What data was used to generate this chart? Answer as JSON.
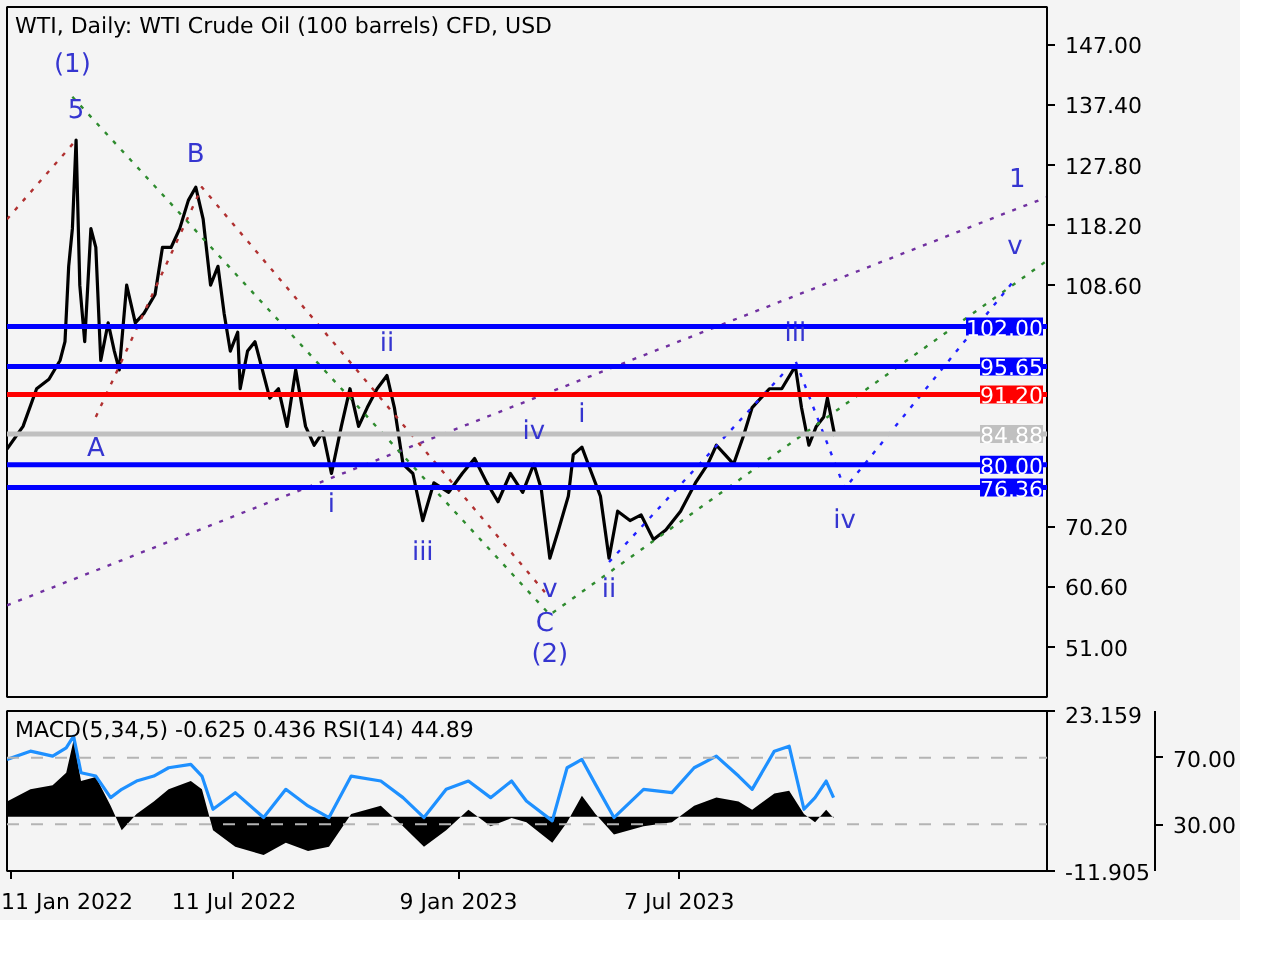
{
  "chart_data": [
    {
      "type": "line",
      "title": "WTI, Daily:  WTI Crude Oil (100 barrels) CFD, USD",
      "xlim": [
        "2022-01-08",
        "2024-04-30"
      ],
      "ylim": [
        43.0,
        152.9
      ],
      "yticks": [
        {
          "value": 147,
          "label": "147.00"
        },
        {
          "value": 137.4,
          "label": "137.40"
        },
        {
          "value": 127.8,
          "label": "127.80"
        },
        {
          "value": 118.2,
          "label": "118.20"
        },
        {
          "value": 108.6,
          "label": "108.60"
        },
        {
          "value": 70.2,
          "label": "70.20"
        },
        {
          "value": 60.6,
          "label": "60.60"
        },
        {
          "value": 51,
          "label": "51.00"
        }
      ],
      "tick_labels": "y",
      "grid": false,
      "series": [
        {
          "color": "#000000",
          "line_style": "solid",
          "x": [
            "2022-01-08",
            "2022-01-21",
            "2022-02-01",
            "2022-02-11",
            "2022-02-20",
            "2022-02-24",
            "2022-02-27",
            "2022-03-02",
            "2022-03-05",
            "2022-03-08",
            "2022-03-12",
            "2022-03-17",
            "2022-03-21",
            "2022-03-25",
            "2022-03-31",
            "2022-04-05",
            "2022-04-09",
            "2022-04-15",
            "2022-04-22",
            "2022-04-29",
            "2022-05-08",
            "2022-05-14",
            "2022-05-21",
            "2022-05-28",
            "2022-06-04",
            "2022-06-10",
            "2022-06-16",
            "2022-06-22",
            "2022-06-28",
            "2022-07-03",
            "2022-07-08",
            "2022-07-14",
            "2022-07-16",
            "2022-07-22",
            "2022-07-28",
            "2022-08-03",
            "2022-08-09",
            "2022-08-16",
            "2022-08-23",
            "2022-08-30",
            "2022-09-07",
            "2022-09-14",
            "2022-09-21",
            "2022-09-28",
            "2022-10-06",
            "2022-10-13",
            "2022-10-20",
            "2022-10-27",
            "2022-11-04",
            "2022-11-12",
            "2022-11-18",
            "2022-11-25",
            "2022-12-03",
            "2022-12-11",
            "2022-12-20",
            "2023-01-01",
            "2023-01-12",
            "2023-01-22",
            "2023-02-01",
            "2023-02-10",
            "2023-02-20",
            "2023-03-02",
            "2023-03-11",
            "2023-03-17",
            "2023-03-24",
            "2023-03-31",
            "2023-04-08",
            "2023-04-12",
            "2023-04-19",
            "2023-04-27",
            "2023-05-04",
            "2023-05-11",
            "2023-05-18",
            "2023-05-28",
            "2023-06-06",
            "2023-06-16",
            "2023-06-26",
            "2023-07-08",
            "2023-07-20",
            "2023-07-30",
            "2023-08-06",
            "2023-08-13",
            "2023-08-20",
            "2023-08-28",
            "2023-09-04",
            "2023-09-11",
            "2023-09-18",
            "2023-09-28",
            "2023-10-09",
            "2023-10-14",
            "2023-10-20",
            "2023-10-26",
            "2023-11-01",
            "2023-11-04",
            "2023-11-10"
          ],
          "values": [
            82.5,
            86.1,
            92.1,
            93.6,
            96.6,
            99.6,
            111.6,
            117.6,
            131.7,
            108.6,
            99.6,
            117.6,
            114.6,
            96.6,
            102.6,
            98.1,
            95.1,
            108.6,
            102.6,
            104.1,
            107.1,
            114.6,
            114.6,
            117.6,
            122.1,
            124.2,
            119.1,
            108.6,
            111.6,
            104.1,
            98.1,
            101.1,
            92.1,
            98.1,
            99.6,
            95.1,
            90.6,
            92.1,
            86.1,
            95.1,
            86.1,
            83.1,
            85.2,
            78.6,
            86.1,
            92.1,
            86.1,
            89.1,
            92.1,
            94.2,
            89.1,
            80.1,
            78.6,
            71.1,
            77.1,
            75.6,
            78.6,
            81.0,
            77.1,
            74.1,
            78.6,
            75.6,
            80.1,
            76.2,
            65.1,
            69.6,
            75.0,
            81.6,
            82.8,
            78.6,
            75.0,
            65.1,
            72.6,
            71.1,
            72.0,
            68.1,
            69.6,
            72.6,
            77.1,
            80.1,
            83.1,
            81.6,
            80.1,
            84.6,
            89.1,
            90.6,
            92.1,
            92.1,
            95.7,
            89.1,
            83.1,
            86.1,
            87.6,
            90.6,
            84.6
          ]
        },
        {
          "color": "#7030a0",
          "line_style": "dotted",
          "x": [
            "2022-01-08",
            "2024-04-06",
            "2024-04-30"
          ],
          "values": [
            57.6,
            120.8,
            122.6
          ]
        },
        {
          "color": "#b03030",
          "line_style": "dotted",
          "x": [
            "2022-01-08",
            "2022-03-05"
          ],
          "values": [
            119.1,
            131.7
          ]
        },
        {
          "color": "#b03030",
          "line_style": "dotted",
          "x": [
            "2022-03-21",
            "2022-06-15",
            "2023-03-20"
          ],
          "values": [
            87.6,
            124.2,
            59.7
          ]
        },
        {
          "color": "#2e8b2e",
          "line_style": "dotted",
          "x": [
            "2022-03-02",
            "2023-03-24",
            "2024-04-30"
          ],
          "values": [
            138.6,
            56.1,
            112.5
          ]
        },
        {
          "color": "#2020ff",
          "line_style": "dotted",
          "x": [
            "2023-05-11",
            "2023-10-09",
            "2023-11-18",
            "2024-04-04"
          ],
          "values": [
            64.5,
            96.6,
            76.2,
            109.5
          ]
        }
      ],
      "ref_lines": [
        {
          "axis": "y",
          "value": 102.0,
          "label": "102.00",
          "color": "#0000ff",
          "line_style": "solid"
        },
        {
          "axis": "y",
          "value": 95.65,
          "label": "95.65",
          "color": "#0000ff",
          "line_style": "solid"
        },
        {
          "axis": "y",
          "value": 91.2,
          "label": "91.20",
          "color": "#ff0000",
          "line_style": "solid"
        },
        {
          "axis": "y",
          "value": 84.88,
          "label": "84.88",
          "color": "#c0c0c0",
          "line_style": "solid"
        },
        {
          "axis": "y",
          "value": 80.0,
          "label": "80.00",
          "color": "#0000ff",
          "line_style": "solid"
        },
        {
          "axis": "y",
          "value": 76.36,
          "label": "76.36",
          "color": "#0000ff",
          "line_style": "solid"
        }
      ],
      "annotations": [
        {
          "text": "(1)",
          "x": "2022-03-02",
          "y": 138.6
        },
        {
          "text": "5",
          "x": "2022-03-05",
          "y": 131.7
        },
        {
          "text": "A",
          "x": "2022-03-21",
          "y": 87.6
        },
        {
          "text": "B",
          "x": "2022-06-10",
          "y": 124.2
        },
        {
          "text": "i",
          "x": "2022-09-28",
          "y": 78.6
        },
        {
          "text": "ii",
          "x": "2022-11-12",
          "y": 94.2
        },
        {
          "text": "iii",
          "x": "2022-12-11",
          "y": 71.1
        },
        {
          "text": "iv",
          "x": "2023-03-11",
          "y": 80.1
        },
        {
          "text": "v",
          "x": "2023-03-24",
          "y": 65.1
        },
        {
          "text": "C",
          "x": "2023-03-20",
          "y": 59.7
        },
        {
          "text": "(2)",
          "x": "2023-03-24",
          "y": 56.1
        },
        {
          "text": "i",
          "x": "2023-04-19",
          "y": 82.8
        },
        {
          "text": "ii",
          "x": "2023-05-11",
          "y": 65.1
        },
        {
          "text": "iii",
          "x": "2023-10-09",
          "y": 95.7
        },
        {
          "text": "iv",
          "x": "2023-11-18",
          "y": 76.2
        },
        {
          "text": "v",
          "x": "2024-04-04",
          "y": 109.5
        },
        {
          "text": "1",
          "x": "2024-04-06",
          "y": 120.8
        }
      ]
    },
    {
      "type": "area",
      "title": "MACD(5,34,5) -0.625 0.436 RSI(14) 44.89",
      "xlim": [
        "2022-01-08",
        "2024-04-30"
      ],
      "xticks": [
        {
          "value": "2022-01-11",
          "label": "11 Jan 2022"
        },
        {
          "value": "2022-07-11",
          "label": "11 Jul 2022"
        },
        {
          "value": "2023-01-09",
          "label": "9 Jan 2023"
        },
        {
          "value": "2023-07-07",
          "label": "7 Jul 2023"
        }
      ],
      "ylim": [
        -11.905,
        23.159
      ],
      "yticks": [
        23.159,
        -11.905
      ],
      "y2lim": [
        1.8,
        98.2
      ],
      "y2ticks": [
        {
          "value": 70,
          "label": "70.00"
        },
        {
          "value": 30,
          "label": "30.00"
        }
      ],
      "grid": false,
      "x": [
        "2022-01-08",
        "2022-01-27",
        "2022-02-14",
        "2022-02-25",
        "2022-03-03",
        "2022-03-09",
        "2022-03-21",
        "2022-04-02",
        "2022-04-11",
        "2022-04-23",
        "2022-05-07",
        "2022-05-19",
        "2022-06-06",
        "2022-06-15",
        "2022-06-24",
        "2022-07-12",
        "2022-08-04",
        "2022-08-22",
        "2022-09-09",
        "2022-09-26",
        "2022-10-14",
        "2022-11-07",
        "2022-11-25",
        "2022-12-12",
        "2022-12-30",
        "2023-01-17",
        "2023-02-04",
        "2023-02-21",
        "2023-03-05",
        "2023-03-26",
        "2023-04-07",
        "2023-04-19",
        "2023-04-30",
        "2023-05-15",
        "2023-06-08",
        "2023-07-01",
        "2023-07-19",
        "2023-08-06",
        "2023-08-24",
        "2023-09-04",
        "2023-09-22",
        "2023-10-04",
        "2023-10-16",
        "2023-10-25",
        "2023-11-03",
        "2023-11-09"
      ],
      "series": [
        {
          "type": "area",
          "color": "#000000",
          "values": [
            3.3,
            6.0,
            6.9,
            9.6,
            16.8,
            7.8,
            8.7,
            2.4,
            -3.0,
            0.6,
            3.3,
            6.0,
            7.8,
            6.0,
            -3.0,
            -6.6,
            -8.4,
            -5.7,
            -7.5,
            -6.6,
            0.6,
            2.4,
            -2.1,
            -6.6,
            -3.0,
            1.5,
            -2.1,
            -0.3,
            -1.2,
            -5.7,
            -1.2,
            4.6,
            0.6,
            -3.9,
            -2.1,
            -1.2,
            2.4,
            4.2,
            3.3,
            1.5,
            5.1,
            5.7,
            0.6,
            -1.2,
            1.5,
            -0.3
          ]
        },
        {
          "type": "line",
          "color": "#1e90ff",
          "axis": "y2",
          "line_style": "solid",
          "values": [
            69,
            74,
            71,
            76,
            83,
            61,
            59,
            46,
            51,
            56,
            59,
            64,
            66,
            59,
            39,
            49,
            34,
            51,
            41,
            34,
            59,
            56,
            46,
            34,
            51,
            56,
            46,
            56,
            44,
            32,
            64,
            69,
            54,
            34,
            51,
            49,
            64,
            71,
            59,
            51,
            74,
            77,
            39,
            46,
            56,
            46
          ]
        }
      ],
      "ref_lines": [
        {
          "axis": "y2",
          "value": 70,
          "color": "#b4b4b4",
          "line_style": "dashed"
        },
        {
          "axis": "y2",
          "value": 30,
          "color": "#b4b4b4",
          "line_style": "dashed"
        }
      ]
    }
  ]
}
